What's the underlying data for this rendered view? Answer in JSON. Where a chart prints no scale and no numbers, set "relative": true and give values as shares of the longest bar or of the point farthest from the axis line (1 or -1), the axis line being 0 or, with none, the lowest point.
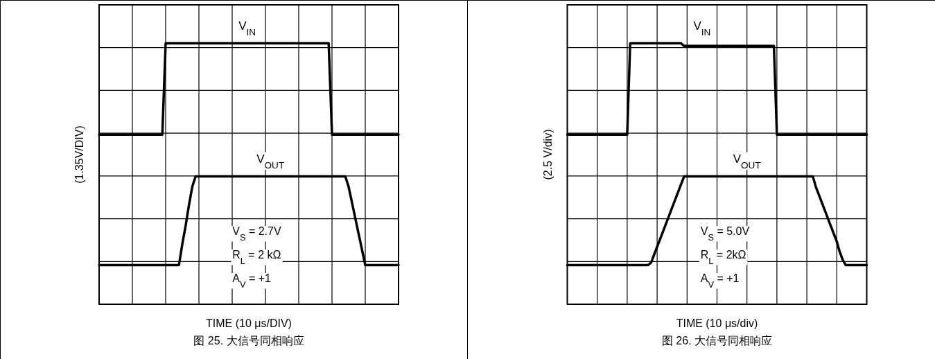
{
  "chart_data": [
    {
      "type": "line",
      "relative": true,
      "ylabel": "(1.35V/DIV)",
      "xlabel": "TIME (10 μs/DIV)",
      "categories": [
        null,
        null,
        null,
        null,
        null,
        null,
        null,
        null,
        null,
        null,
        null,
        null,
        null,
        null,
        null,
        null,
        null,
        null,
        null,
        null,
        null,
        null,
        null,
        null,
        null,
        null,
        null,
        null,
        null,
        null,
        null,
        null,
        null,
        null,
        null,
        null,
        null,
        null,
        null,
        null,
        null,
        null,
        null,
        null,
        null,
        null,
        null,
        null,
        null,
        null,
        null,
        null,
        null,
        null,
        null,
        null,
        null,
        null,
        null,
        null,
        null,
        null,
        null,
        null,
        null,
        null,
        null,
        null,
        null,
        null,
        null,
        null,
        null,
        null,
        null,
        null,
        null,
        null,
        null,
        null,
        null,
        null,
        null,
        null,
        null,
        null,
        null,
        null,
        null,
        null,
        null
      ],
      "grid": true,
      "marker": "none",
      "line_style": "solid",
      "series": [
        {
          "name": "V$_{IN}$",
          "color": "#000000",
          "values": [
            0.65,
            0.65,
            0.65,
            0.65,
            0.65,
            0.65,
            0.65,
            0.65,
            0.65,
            0.65,
            0.65,
            0.65,
            0.65,
            0.65,
            0.65,
            0.65,
            0.65,
            0.65,
            0.65,
            0.65,
            1,
            1,
            1,
            1,
            1,
            1,
            1,
            1,
            1,
            1,
            1,
            1,
            1,
            1,
            1,
            1,
            1,
            1,
            1,
            1,
            1,
            1,
            1,
            1,
            1,
            1,
            1,
            1,
            1,
            1,
            1,
            1,
            1,
            1,
            1,
            1,
            1,
            1,
            1,
            1,
            1,
            1,
            1,
            1,
            1,
            1,
            1,
            1,
            1,
            1,
            0.65,
            0.65,
            0.65,
            0.65,
            0.65,
            0.65,
            0.65,
            0.65,
            0.65,
            0.65,
            0.65,
            0.65,
            0.65,
            0.65,
            0.65,
            0.65,
            0.65,
            0.65,
            0.65,
            0.65,
            0.65
          ]
        },
        {
          "name": "V$_{OUT}$",
          "color": "#000000",
          "values": [
            0.15,
            0.15,
            0.15,
            0.15,
            0.15,
            0.15,
            0.15,
            0.15,
            0.15,
            0.15,
            0.15,
            0.15,
            0.15,
            0.15,
            0.15,
            0.15,
            0.15,
            0.15,
            0.15,
            0.15,
            0.15,
            0.15,
            0.15,
            0.15,
            0.15,
            0.23,
            0.3,
            0.38,
            0.45,
            0.49,
            0.49,
            0.49,
            0.49,
            0.49,
            0.49,
            0.49,
            0.49,
            0.49,
            0.49,
            0.49,
            0.49,
            0.49,
            0.49,
            0.49,
            0.49,
            0.49,
            0.49,
            0.49,
            0.49,
            0.49,
            0.49,
            0.49,
            0.49,
            0.49,
            0.49,
            0.49,
            0.49,
            0.49,
            0.49,
            0.49,
            0.49,
            0.49,
            0.49,
            0.49,
            0.49,
            0.49,
            0.49,
            0.49,
            0.49,
            0.49,
            0.49,
            0.49,
            0.49,
            0.49,
            0.49,
            0.45,
            0.39,
            0.33,
            0.27,
            0.21,
            0.15,
            0.15,
            0.15,
            0.15,
            0.15,
            0.15,
            0.15,
            0.15,
            0.15,
            0.15,
            0.15
          ]
        }
      ],
      "annotations": [
        "V$_{S}$ = 2.7V",
        "R$_{L}$ = 2 kΩ",
        "A$_{V}$ = +1",
        "图 25. 大信号同相响应"
      ]
    },
    {
      "type": "line",
      "relative": true,
      "ylabel": "(2.5 V/div)",
      "xlabel": "TIME (10 μs/div)",
      "categories": [
        null,
        null,
        null,
        null,
        null,
        null,
        null,
        null,
        null,
        null,
        null,
        null,
        null,
        null,
        null,
        null,
        null,
        null,
        null,
        null,
        null,
        null,
        null,
        null,
        null,
        null,
        null,
        null,
        null,
        null,
        null,
        null,
        null,
        null,
        null,
        null,
        null,
        null,
        null,
        null,
        null,
        null,
        null,
        null,
        null,
        null,
        null,
        null,
        null,
        null,
        null,
        null,
        null,
        null,
        null,
        null,
        null,
        null,
        null,
        null,
        null,
        null,
        null,
        null,
        null,
        null,
        null,
        null,
        null,
        null,
        null,
        null,
        null,
        null,
        null,
        null,
        null,
        null,
        null,
        null,
        null,
        null,
        null,
        null,
        null,
        null,
        null,
        null,
        null,
        null,
        null,
        null,
        null,
        null,
        null,
        null,
        null,
        null,
        null,
        null,
        null
      ],
      "grid": true,
      "marker": "none",
      "line_style": "solid",
      "series": [
        {
          "name": "V$_{IN}$",
          "color": "#000000",
          "values": [
            0.65,
            0.65,
            0.65,
            0.65,
            0.65,
            0.65,
            0.65,
            0.65,
            0.65,
            0.65,
            0.65,
            0.65,
            0.65,
            0.65,
            0.65,
            0.65,
            0.65,
            0.65,
            0.65,
            0.65,
            0.65,
            1,
            1,
            1,
            1,
            1,
            1,
            1,
            1,
            1,
            1,
            1,
            1,
            1,
            1,
            1,
            1,
            1,
            1,
            0.99,
            0.99,
            0.99,
            0.99,
            0.99,
            0.99,
            0.99,
            0.99,
            0.99,
            0.99,
            0.99,
            0.99,
            0.99,
            0.99,
            0.99,
            0.99,
            0.99,
            0.99,
            0.99,
            0.99,
            0.99,
            0.99,
            0.99,
            0.99,
            0.99,
            0.99,
            0.99,
            0.99,
            0.99,
            0.99,
            0.99,
            0.65,
            0.65,
            0.65,
            0.65,
            0.65,
            0.65,
            0.65,
            0.65,
            0.65,
            0.65,
            0.65,
            0.65,
            0.65,
            0.65,
            0.65,
            0.65,
            0.65,
            0.65,
            0.65,
            0.65,
            0.65,
            0.65,
            0.65,
            0.65,
            0.65,
            0.65,
            0.65,
            0.65,
            0.65,
            0.65,
            0.65
          ]
        },
        {
          "name": "V$_{OUT}$",
          "color": "#000000",
          "values": [
            0.15,
            0.15,
            0.15,
            0.15,
            0.15,
            0.15,
            0.15,
            0.15,
            0.15,
            0.15,
            0.15,
            0.15,
            0.15,
            0.15,
            0.15,
            0.15,
            0.15,
            0.15,
            0.15,
            0.15,
            0.15,
            0.15,
            0.15,
            0.15,
            0.15,
            0.15,
            0.15,
            0.15,
            0.16,
            0.19,
            0.22,
            0.25,
            0.28,
            0.31,
            0.34,
            0.37,
            0.4,
            0.43,
            0.46,
            0.49,
            0.49,
            0.49,
            0.49,
            0.49,
            0.49,
            0.49,
            0.49,
            0.49,
            0.49,
            0.49,
            0.49,
            0.49,
            0.49,
            0.49,
            0.49,
            0.49,
            0.49,
            0.49,
            0.49,
            0.49,
            0.49,
            0.49,
            0.49,
            0.49,
            0.49,
            0.49,
            0.49,
            0.49,
            0.49,
            0.49,
            0.49,
            0.49,
            0.49,
            0.49,
            0.49,
            0.49,
            0.49,
            0.49,
            0.49,
            0.49,
            0.49,
            0.49,
            0.49,
            0.45,
            0.42,
            0.39,
            0.36,
            0.33,
            0.3,
            0.27,
            0.24,
            0.2,
            0.17,
            0.15,
            0.15,
            0.15,
            0.15,
            0.15,
            0.15,
            0.15,
            0.15
          ]
        }
      ],
      "annotations": [
        "V$_{S}$ = 5.0V",
        "R$_{L}$ = 2kΩ",
        "A$_{V}$ = +1",
        "图 26. 大信号同相响应"
      ]
    }
  ]
}
